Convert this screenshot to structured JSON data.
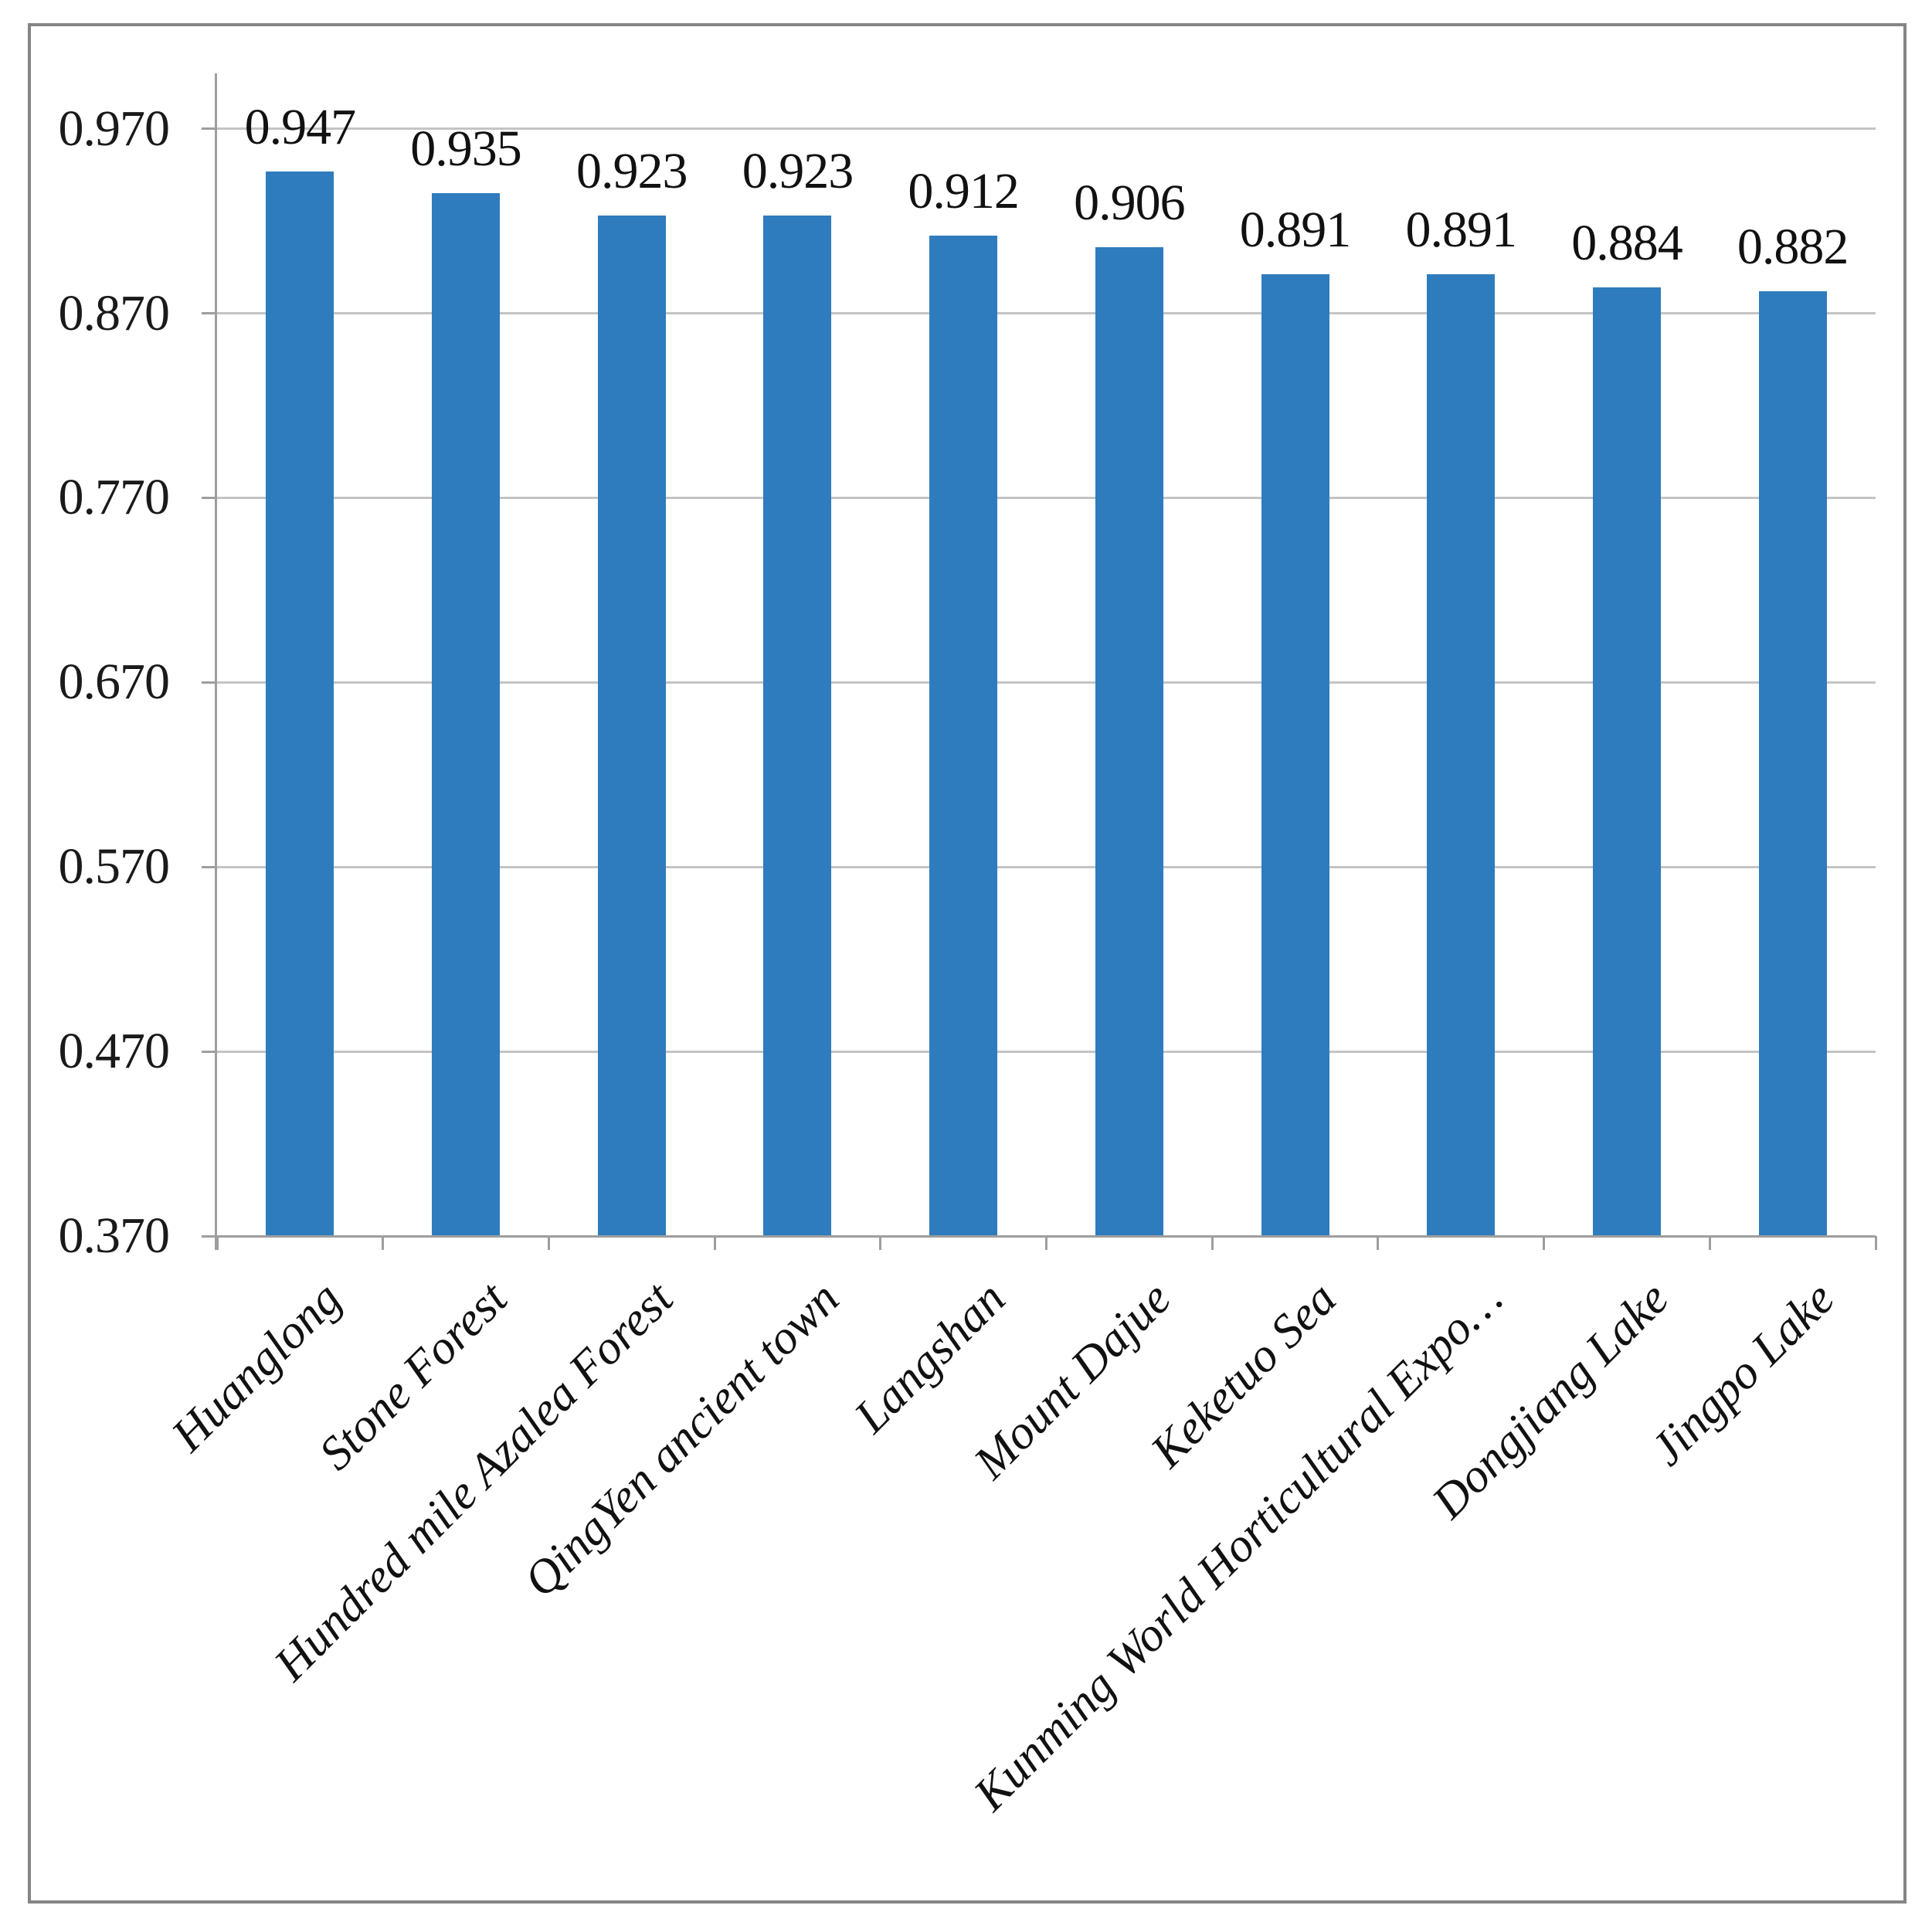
{
  "chart_data": {
    "type": "bar",
    "title": "",
    "xlabel": "",
    "ylabel": "",
    "categories": [
      "Huanglong",
      "Stone Forest",
      "Hundred mile Azalea Forest",
      "QingYen ancient town",
      "Langshan",
      "Mount Dajue",
      "Keketuo Sea",
      "Kunming World Horticultural Expo…",
      "Dongjiang Lake",
      "Jingpo Lake"
    ],
    "values": [
      0.947,
      0.935,
      0.923,
      0.923,
      0.912,
      0.906,
      0.891,
      0.891,
      0.884,
      0.882
    ],
    "value_labels": [
      "0.947",
      "0.935",
      "0.923",
      "0.923",
      "0.912",
      "0.906",
      "0.891",
      "0.891",
      "0.884",
      "0.882"
    ],
    "ylim": [
      0.37,
      1.0
    ],
    "ytick_values": [
      0.97,
      0.87,
      0.77,
      0.67,
      0.57,
      0.47,
      0.37
    ],
    "ytick_labels": [
      "0.970",
      "0.870",
      "0.770",
      "0.670",
      "0.570",
      "0.470",
      "0.370"
    ],
    "grid": true,
    "legend": false,
    "x_tick_rotation_deg": 45,
    "colors": {
      "bar": "#2E7CBE",
      "gridline": "#C4C4C4",
      "axis": "#9E9E9E",
      "text": "#1A1A1A",
      "frame_border": "#858585",
      "background": "#FFFFFF"
    }
  }
}
